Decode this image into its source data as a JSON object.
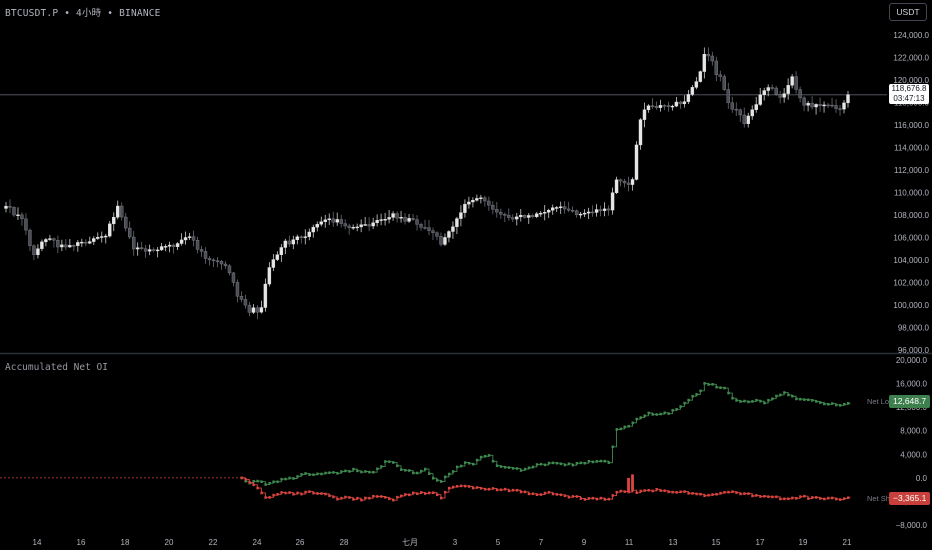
{
  "header": {
    "symbol": "BTCUSDT.P",
    "interval": "4小時",
    "exchange": "BINANCE",
    "separator": "•",
    "currency": "USDT"
  },
  "price_tag": {
    "price": "118,676.8",
    "countdown": "03:47:13"
  },
  "indicator": {
    "name": "Accumulated Net OI",
    "long_label": "Net Lo",
    "long_value": "12,648.7",
    "short_label": "Net Sh",
    "short_value": "−3,365.1"
  },
  "colors": {
    "up": "#e6e6e6",
    "down": "#4a4d55",
    "long": "#3f8a4f",
    "short": "#d9453f",
    "long_tag": "#3e7f4e",
    "short_tag": "#c7403b"
  },
  "chart_data": [
    {
      "type": "candlestick",
      "yticks": [
        96000,
        98000,
        100000,
        102000,
        104000,
        106000,
        108000,
        110000,
        112000,
        114000,
        116000,
        118000,
        120000,
        122000,
        124000
      ],
      "ytick_labels": [
        "96,000.0",
        "98,000.0",
        "100,000.0",
        "102,000.0",
        "104,000.0",
        "106,000.0",
        "108,000.0",
        "110,000.0",
        "112,000.0",
        "114,000.0",
        "116,000.0",
        "118,000.0",
        "120,000.0",
        "122,000.0",
        "124,000.0"
      ],
      "ylim": [
        96000,
        125500
      ],
      "last_price": 118676.8,
      "x_labels": [
        "14",
        "16",
        "18",
        "20",
        "22",
        "24",
        "26",
        "28",
        "七月",
        "3",
        "5",
        "7",
        "9",
        "11",
        "13",
        "15",
        "17",
        "19",
        "21"
      ],
      "close_anchors": [
        [
          0,
          108800
        ],
        [
          4,
          107600
        ],
        [
          7,
          104400
        ],
        [
          10,
          105900
        ],
        [
          15,
          105000
        ],
        [
          20,
          105600
        ],
        [
          25,
          106200
        ],
        [
          28,
          108900
        ],
        [
          32,
          105000
        ],
        [
          37,
          104900
        ],
        [
          42,
          105300
        ],
        [
          46,
          106200
        ],
        [
          50,
          104000
        ],
        [
          55,
          103500
        ],
        [
          58,
          101200
        ],
        [
          61,
          99200
        ],
        [
          63,
          98600
        ],
        [
          66,
          103400
        ],
        [
          70,
          105500
        ],
        [
          75,
          106100
        ],
        [
          79,
          107600
        ],
        [
          83,
          107400
        ],
        [
          87,
          106800
        ],
        [
          92,
          107200
        ],
        [
          97,
          108000
        ],
        [
          102,
          107400
        ],
        [
          106,
          106800
        ],
        [
          109,
          105500
        ],
        [
          112,
          107100
        ],
        [
          115,
          108900
        ],
        [
          119,
          109700
        ],
        [
          123,
          108300
        ],
        [
          127,
          107700
        ],
        [
          131,
          107900
        ],
        [
          135,
          108400
        ],
        [
          139,
          108900
        ],
        [
          143,
          108000
        ],
        [
          147,
          108400
        ],
        [
          151,
          108500
        ],
        [
          153,
          111200
        ],
        [
          155,
          110800
        ],
        [
          157,
          111000
        ],
        [
          158,
          114300
        ],
        [
          159,
          116600
        ],
        [
          161,
          117800
        ],
        [
          166,
          117600
        ],
        [
          170,
          118200
        ],
        [
          173,
          119600
        ],
        [
          175,
          121800
        ],
        [
          177,
          122300
        ],
        [
          179,
          119900
        ],
        [
          182,
          117300
        ],
        [
          185,
          116400
        ],
        [
          188,
          118000
        ],
        [
          191,
          119500
        ],
        [
          194,
          118300
        ],
        [
          197,
          120100
        ],
        [
          200,
          117800
        ],
        [
          203,
          117800
        ],
        [
          206,
          117600
        ],
        [
          209,
          117600
        ],
        [
          211,
          118677
        ]
      ],
      "volatility_boost": [
        [
          58,
          64,
          1800
        ],
        [
          173,
          185,
          1300
        ]
      ]
    },
    {
      "type": "line",
      "title": "Accumulated Net OI",
      "yticks": [
        -8000,
        -4000,
        0,
        4000,
        8000,
        12000,
        16000,
        20000
      ],
      "ytick_labels": [
        "−8,000.0",
        "−4,000.0",
        "0.0",
        "4,000.0",
        "8,000.0",
        "12,000.0",
        "16,000.0",
        "20,000.0"
      ],
      "ylim": [
        -8500,
        20500
      ],
      "start_index": 59,
      "series": [
        {
          "name": "Net Long",
          "last_value": 12648.7,
          "anchors": [
            [
              59,
              0
            ],
            [
              61,
              -800
            ],
            [
              63,
              -500
            ],
            [
              65,
              -1000
            ],
            [
              68,
              -500
            ],
            [
              72,
              0
            ],
            [
              75,
              600
            ],
            [
              78,
              700
            ],
            [
              80,
              800
            ],
            [
              83,
              900
            ],
            [
              85,
              1000
            ],
            [
              87,
              1400
            ],
            [
              89,
              1000
            ],
            [
              92,
              900
            ],
            [
              95,
              2700
            ],
            [
              97,
              2700
            ],
            [
              99,
              1500
            ],
            [
              101,
              1200
            ],
            [
              103,
              800
            ],
            [
              105,
              1600
            ],
            [
              107,
              0
            ],
            [
              109,
              -600
            ],
            [
              111,
              700
            ],
            [
              113,
              1700
            ],
            [
              115,
              2700
            ],
            [
              117,
              2500
            ],
            [
              119,
              3500
            ],
            [
              121,
              3900
            ],
            [
              123,
              2100
            ],
            [
              126,
              1800
            ],
            [
              129,
              1400
            ],
            [
              131,
              1600
            ],
            [
              133,
              2100
            ],
            [
              136,
              2400
            ],
            [
              139,
              2300
            ],
            [
              142,
              2200
            ],
            [
              145,
              2600
            ],
            [
              148,
              2700
            ],
            [
              151,
              2700
            ],
            [
              153,
              8200
            ],
            [
              155,
              8600
            ],
            [
              157,
              9200
            ],
            [
              159,
              10400
            ],
            [
              161,
              10900
            ],
            [
              163,
              10900
            ],
            [
              166,
              11000
            ],
            [
              169,
              12000
            ],
            [
              172,
              13700
            ],
            [
              174,
              14800
            ],
            [
              175,
              15900
            ],
            [
              177,
              15700
            ],
            [
              180,
              15200
            ],
            [
              182,
              13500
            ],
            [
              184,
              12900
            ],
            [
              186,
              12800
            ],
            [
              188,
              13300
            ],
            [
              190,
              12700
            ],
            [
              193,
              13800
            ],
            [
              195,
              14400
            ],
            [
              198,
              13500
            ],
            [
              201,
              13200
            ],
            [
              204,
              12600
            ],
            [
              207,
              12500
            ],
            [
              209,
              12400
            ],
            [
              211,
              12649
            ]
          ]
        },
        {
          "name": "Net Short",
          "last_value": -3365.1,
          "anchors": [
            [
              59,
              0
            ],
            [
              61,
              -900
            ],
            [
              63,
              -1800
            ],
            [
              65,
              -3500
            ],
            [
              67,
              -3000
            ],
            [
              69,
              -2600
            ],
            [
              71,
              -2600
            ],
            [
              74,
              -2600
            ],
            [
              77,
              -2400
            ],
            [
              80,
              -2800
            ],
            [
              83,
              -3500
            ],
            [
              86,
              -3400
            ],
            [
              89,
              -3600
            ],
            [
              92,
              -3300
            ],
            [
              95,
              -3200
            ],
            [
              97,
              -3600
            ],
            [
              99,
              -3000
            ],
            [
              101,
              -2800
            ],
            [
              103,
              -2500
            ],
            [
              105,
              -2700
            ],
            [
              107,
              -2500
            ],
            [
              109,
              -3300
            ],
            [
              111,
              -1800
            ],
            [
              113,
              -1500
            ],
            [
              115,
              -1500
            ],
            [
              118,
              -1700
            ],
            [
              121,
              -1800
            ],
            [
              124,
              -2000
            ],
            [
              127,
              -2200
            ],
            [
              130,
              -2400
            ],
            [
              133,
              -2800
            ],
            [
              136,
              -2500
            ],
            [
              139,
              -3000
            ],
            [
              142,
              -3200
            ],
            [
              145,
              -3600
            ],
            [
              148,
              -3400
            ],
            [
              151,
              -3700
            ],
            [
              153,
              -2500
            ],
            [
              155,
              -2300
            ],
            [
              157,
              -2200
            ],
            [
              158,
              -2400
            ],
            [
              160,
              -2300
            ],
            [
              163,
              -2100
            ],
            [
              166,
              -2200
            ],
            [
              169,
              -2400
            ],
            [
              172,
              -2500
            ],
            [
              175,
              -3000
            ],
            [
              178,
              -2700
            ],
            [
              181,
              -2500
            ],
            [
              184,
              -2600
            ],
            [
              187,
              -2900
            ],
            [
              190,
              -3100
            ],
            [
              193,
              -3300
            ],
            [
              196,
              -3600
            ],
            [
              199,
              -3200
            ],
            [
              202,
              -3400
            ],
            [
              205,
              -3500
            ],
            [
              208,
              -3600
            ],
            [
              210,
              -3400
            ],
            [
              211,
              -3365
            ]
          ],
          "spikes": [
            [
              156,
              0
            ],
            [
              157,
              600
            ]
          ]
        }
      ]
    }
  ]
}
